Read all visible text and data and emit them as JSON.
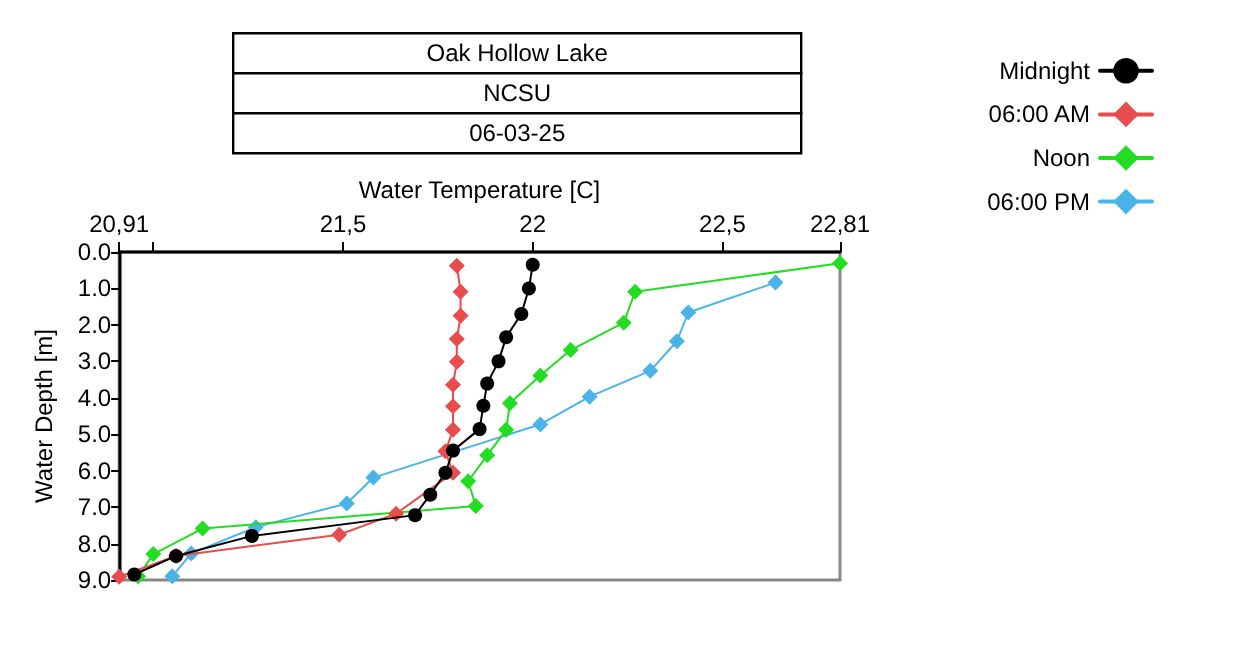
{
  "chart_data": {
    "type": "line",
    "title": "Oak Hollow Lake",
    "subtitle": "NCSU",
    "annotations": [
      "06-03-25"
    ],
    "xlabel": "Water Temperature [C]",
    "ylabel": "Water Depth [m]",
    "xlim": [
      20.91,
      22.81
    ],
    "xticks": [
      {
        "value": 20.91,
        "label": "20,91"
      },
      {
        "value": 21,
        "label": null
      },
      {
        "value": 21.5,
        "label": "21,5"
      },
      22,
      {
        "value": 22.5,
        "label": "22,5"
      },
      {
        "value": 22.81,
        "label": "22,81"
      }
    ],
    "ylim": [
      9.0,
      0.0
    ],
    "yticks": [
      {
        "value": 0,
        "label": "0.0"
      },
      {
        "value": 1,
        "label": "1.0"
      },
      {
        "value": 2,
        "label": "2.0"
      },
      {
        "value": 3,
        "label": "3.0"
      },
      {
        "value": 4,
        "label": "4.0"
      },
      {
        "value": 5,
        "label": "5.0"
      },
      {
        "value": 6,
        "label": "6.0"
      },
      {
        "value": 7,
        "label": "7.0"
      },
      {
        "value": 8,
        "label": "8.0"
      },
      {
        "value": 9,
        "label": "9.0"
      }
    ],
    "grid": false,
    "legend": "top right",
    "marker": "diamond",
    "line_style": "solid",
    "series": [
      {
        "name": "Midnight",
        "color": "#000000",
        "marker": "circle",
        "x": [
          22.0,
          21.99,
          21.97,
          21.93,
          21.91,
          21.88,
          21.87,
          21.86,
          21.79,
          21.77,
          21.73,
          21.69,
          21.26,
          21.06,
          20.95
        ],
        "values": [
          0.35,
          1.0,
          1.7,
          2.34,
          3.0,
          3.61,
          4.22,
          4.86,
          5.45,
          6.06,
          6.66,
          7.22,
          7.79,
          8.34,
          8.85
        ]
      },
      {
        "name": "06:00 AM",
        "color": "#e84c4c",
        "x": [
          21.8,
          21.81,
          21.81,
          21.8,
          21.8,
          21.79,
          21.79,
          21.79,
          21.77,
          21.79,
          21.64,
          21.49,
          21.06,
          20.91
        ],
        "values": [
          0.38,
          1.09,
          1.75,
          2.39,
          3.01,
          3.64,
          4.23,
          4.88,
          5.47,
          6.06,
          7.18,
          7.76,
          8.34,
          8.91
        ]
      },
      {
        "name": "Noon",
        "color": "#22dd22",
        "x": [
          22.81,
          22.27,
          22.24,
          22.1,
          22.02,
          21.94,
          21.93,
          21.88,
          21.83,
          21.85,
          21.13,
          21.0,
          20.96
        ],
        "values": [
          0.31,
          1.09,
          1.94,
          2.69,
          3.39,
          4.15,
          4.88,
          5.58,
          6.29,
          6.97,
          7.59,
          8.29,
          8.9
        ]
      },
      {
        "name": "06:00 PM",
        "color": "#4ab4e8",
        "x": [
          22.64,
          22.41,
          22.38,
          22.31,
          22.15,
          22.02,
          21.58,
          21.51,
          21.27,
          21.1,
          21.05
        ],
        "values": [
          0.84,
          1.66,
          2.45,
          3.26,
          3.97,
          4.73,
          6.19,
          6.9,
          7.55,
          8.27,
          8.9
        ]
      }
    ]
  }
}
